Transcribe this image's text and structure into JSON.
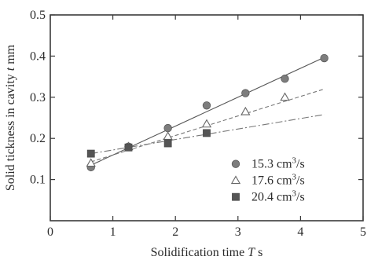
{
  "chart_data": {
    "type": "scatter",
    "title": "",
    "xlabel_parts": [
      "Solidification time ",
      "T",
      " s"
    ],
    "ylabel_parts": [
      "Solid tickness in cavity ",
      "t",
      " mm"
    ],
    "xlim": [
      0,
      5
    ],
    "ylim": [
      0,
      0.5
    ],
    "xticks": [
      "0",
      "1",
      "2",
      "3",
      "4",
      "5"
    ],
    "yticks": [
      "0.1",
      "0.2",
      "0.3",
      "0.4",
      "0.5"
    ],
    "xtick_values": [
      0,
      1,
      2,
      3,
      4,
      5
    ],
    "ytick_values": [
      0.1,
      0.2,
      0.3,
      0.4,
      0.5
    ],
    "grid": false,
    "legend_position": "bottom-right",
    "series": [
      {
        "name": "15.3 cm³/s",
        "label_parts": [
          "15.3 cm",
          "3",
          "/s"
        ],
        "marker": "circle",
        "line_style": "solid",
        "x": [
          0.65,
          1.25,
          1.88,
          2.5,
          3.12,
          3.75,
          4.38
        ],
        "y": [
          0.13,
          0.18,
          0.225,
          0.28,
          0.31,
          0.345,
          0.395
        ],
        "fit": [
          [
            0.65,
            0.135
          ],
          [
            4.38,
            0.397
          ]
        ]
      },
      {
        "name": "17.6 cm³/s",
        "label_parts": [
          "17.6 cm",
          "3",
          "/s"
        ],
        "marker": "triangle",
        "line_style": "dashed",
        "x": [
          0.65,
          1.25,
          1.88,
          2.5,
          3.12,
          3.75
        ],
        "y": [
          0.14,
          0.18,
          0.205,
          0.235,
          0.265,
          0.3
        ],
        "fit": [
          [
            0.65,
            0.143
          ],
          [
            4.38,
            0.32
          ]
        ]
      },
      {
        "name": "20.4 cm³/s",
        "label_parts": [
          "20.4 cm",
          "3",
          "/s"
        ],
        "marker": "square",
        "line_style": "dashdot",
        "x": [
          0.65,
          1.25,
          1.88,
          2.5
        ],
        "y": [
          0.163,
          0.178,
          0.188,
          0.213
        ],
        "fit": [
          [
            0.65,
            0.163
          ],
          [
            4.38,
            0.258
          ]
        ]
      }
    ]
  }
}
